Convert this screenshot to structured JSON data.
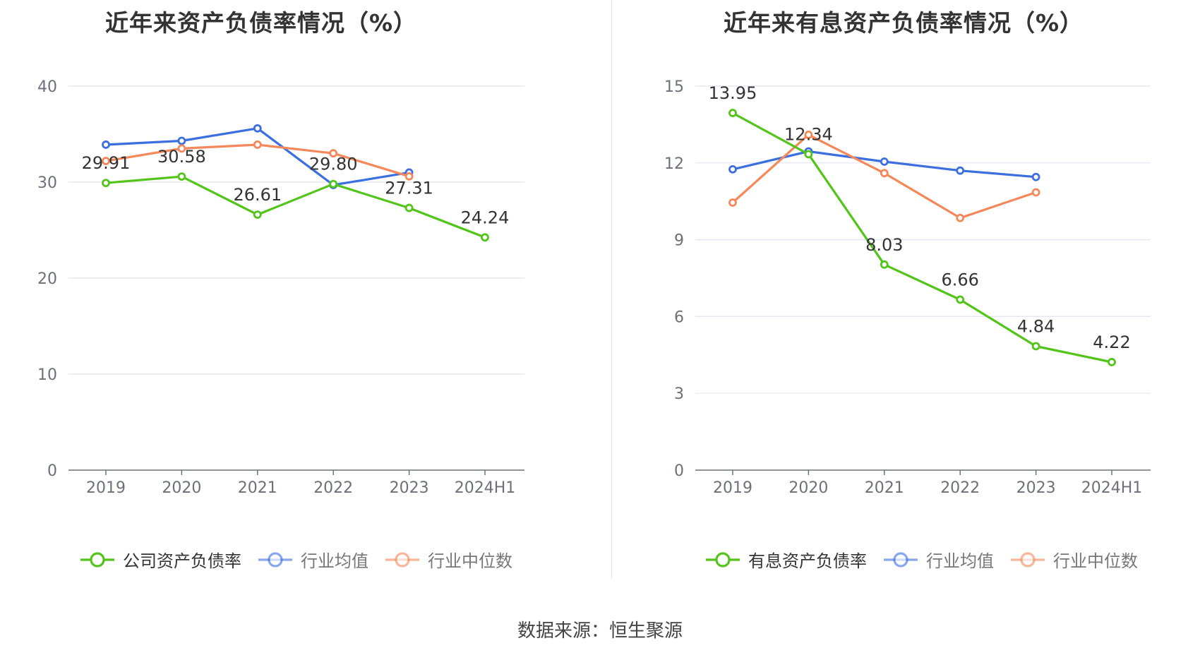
{
  "charts": [
    {
      "id": "left",
      "title": "近年来资产负债率情况（%）",
      "legend": [
        {
          "label": "公司资产负债率",
          "color": "#52c41a"
        },
        {
          "label": "行业均值",
          "color": "#3b6fe0"
        },
        {
          "label": "行业中位数",
          "color": "#f5885a"
        }
      ]
    },
    {
      "id": "right",
      "title": "近年来有息资产负债率情况（%）",
      "legend": [
        {
          "label": "有息资产负债率",
          "color": "#52c41a"
        },
        {
          "label": "行业均值",
          "color": "#3b6fe0"
        },
        {
          "label": "行业中位数",
          "color": "#f5885a"
        }
      ]
    }
  ],
  "footer": "数据来源：恒生聚源",
  "chart_data": [
    {
      "type": "line",
      "title": "近年来资产负债率情况（%）",
      "categories": [
        "2019",
        "2020",
        "2021",
        "2022",
        "2023",
        "2024H1"
      ],
      "ylim": [
        0,
        40
      ],
      "yticks": [
        0,
        10,
        20,
        30,
        40
      ],
      "grid": true,
      "legend_position": "bottom",
      "series": [
        {
          "name": "公司资产负债率",
          "color": "#52c41a",
          "values": [
            29.91,
            30.58,
            26.61,
            29.8,
            27.31,
            24.24
          ],
          "labels": [
            "29.91",
            "30.58",
            "26.61",
            "29.80",
            "27.31",
            "24.24"
          ]
        },
        {
          "name": "行业均值",
          "color": "#3b6fe0",
          "values": [
            33.9,
            34.3,
            35.6,
            29.7,
            31.0,
            null
          ]
        },
        {
          "name": "行业中位数",
          "color": "#f5885a",
          "values": [
            32.2,
            33.5,
            33.9,
            33.0,
            30.6,
            null
          ]
        }
      ]
    },
    {
      "type": "line",
      "title": "近年来有息资产负债率情况（%）",
      "categories": [
        "2019",
        "2020",
        "2021",
        "2022",
        "2023",
        "2024H1"
      ],
      "ylim": [
        0,
        15
      ],
      "yticks": [
        0,
        3,
        6,
        9,
        12,
        15
      ],
      "grid": true,
      "legend_position": "bottom",
      "series": [
        {
          "name": "有息资产负债率",
          "color": "#52c41a",
          "values": [
            13.95,
            12.34,
            8.03,
            6.66,
            4.84,
            4.22
          ],
          "labels": [
            "13.95",
            "12.34",
            "8.03",
            "6.66",
            "4.84",
            "4.22"
          ]
        },
        {
          "name": "行业均值",
          "color": "#3b6fe0",
          "values": [
            11.75,
            12.45,
            12.05,
            11.7,
            11.45,
            null
          ]
        },
        {
          "name": "行业中位数",
          "color": "#f5885a",
          "values": [
            10.45,
            13.1,
            11.6,
            9.85,
            10.85,
            null
          ]
        }
      ]
    }
  ]
}
